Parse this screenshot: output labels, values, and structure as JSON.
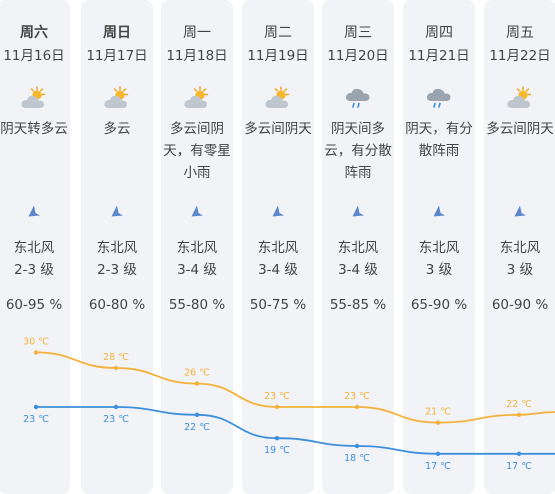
{
  "forecast": {
    "unit": "℃",
    "colors": {
      "high": "#f4b23c",
      "low": "#3c8fdc",
      "column_bg": "#f1f3f6"
    },
    "days": [
      {
        "day": "周六",
        "date": "11月16日",
        "icon": "cloudy-sun-icon",
        "desc": [
          "阴天转多云"
        ],
        "wind_dir": "东北风",
        "wind_level": "2-3 级",
        "humidity": "60-95 %",
        "high": 30,
        "low": 23,
        "bold": true
      },
      {
        "day": "周日",
        "date": "11月17日",
        "icon": "cloudy-sun-icon",
        "desc": [
          "多云"
        ],
        "wind_dir": "东北风",
        "wind_level": "2-3 级",
        "humidity": "60-80 %",
        "high": 28,
        "low": 23,
        "bold": true
      },
      {
        "day": "周一",
        "date": "11月18日",
        "icon": "cloudy-sun-icon",
        "desc": [
          "多云间阴",
          "天，有零星",
          "小雨"
        ],
        "wind_dir": "东北风",
        "wind_level": "3-4 级",
        "humidity": "55-80 %",
        "high": 26,
        "low": 22,
        "bold": false
      },
      {
        "day": "周二",
        "date": "11月19日",
        "icon": "cloudy-sun-icon",
        "desc": [
          "多云间阴天"
        ],
        "wind_dir": "东北风",
        "wind_level": "3-4 级",
        "humidity": "50-75 %",
        "high": 23,
        "low": 19,
        "bold": false
      },
      {
        "day": "周三",
        "date": "11月20日",
        "icon": "rain-cloud-icon",
        "desc": [
          "阴天间多",
          "云，有分散",
          "阵雨"
        ],
        "wind_dir": "东北风",
        "wind_level": "3-4 级",
        "humidity": "55-85 %",
        "high": 23,
        "low": 18,
        "bold": false
      },
      {
        "day": "周四",
        "date": "11月21日",
        "icon": "rain-cloud-icon",
        "desc": [
          "阴天，有分",
          "散阵雨"
        ],
        "wind_dir": "东北风",
        "wind_level": "3 级",
        "humidity": "65-90 %",
        "high": 21,
        "low": 17,
        "bold": false
      },
      {
        "day": "周五",
        "date": "11月22日",
        "icon": "cloudy-sun-icon",
        "desc": [
          "多云间阴天"
        ],
        "wind_dir": "东北风",
        "wind_level": "3 级",
        "humidity": "60-90 %",
        "high": 22,
        "low": 17,
        "bold": false
      }
    ]
  }
}
